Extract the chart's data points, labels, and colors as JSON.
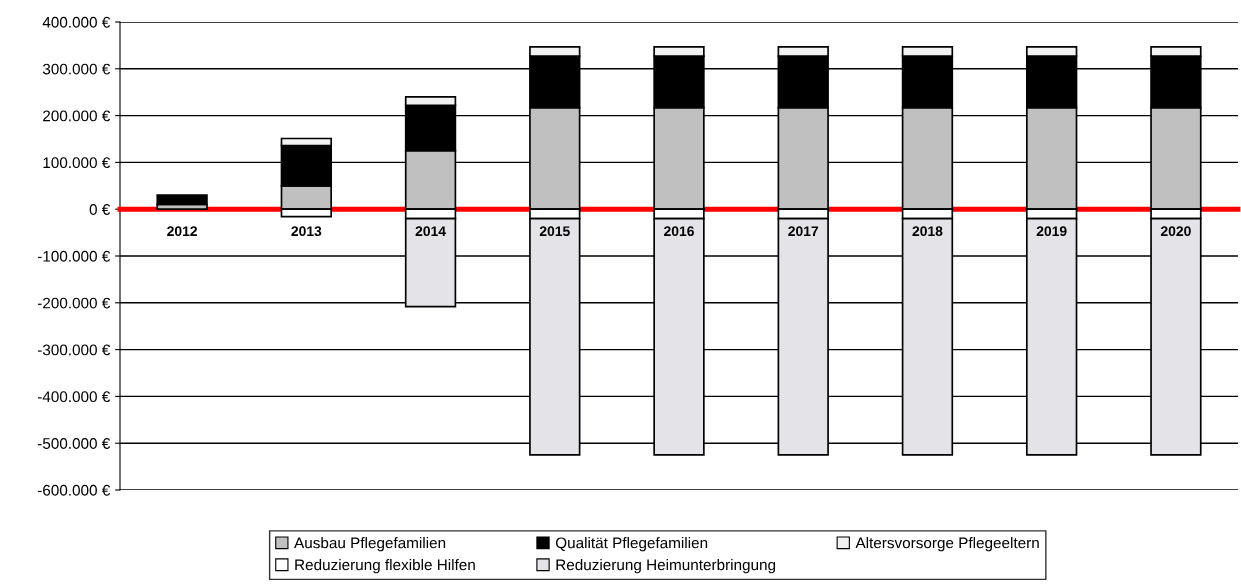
{
  "chart_data": {
    "type": "bar",
    "stacked": true,
    "categories": [
      "2012",
      "2013",
      "2014",
      "2015",
      "2016",
      "2017",
      "2018",
      "2019",
      "2020"
    ],
    "series": [
      {
        "name": "Ausbau Pflegefamilien",
        "color": "#c0c0c0",
        "values": [
          10000,
          50000,
          125000,
          217000,
          217000,
          217000,
          217000,
          217000,
          217000
        ]
      },
      {
        "name": "Qualität Pflegefamilien",
        "color": "#000000",
        "values": [
          20000,
          86000,
          97000,
          110000,
          110000,
          110000,
          110000,
          110000,
          110000
        ]
      },
      {
        "name": "Altersvorsorge Pflegeeltern",
        "color": "#f2f2f2",
        "values": [
          null,
          15000,
          18000,
          20000,
          20000,
          20000,
          20000,
          20000,
          20000
        ]
      },
      {
        "name": "Reduzierung flexible Hilfen",
        "color": "#ffffff",
        "values": [
          null,
          -16000,
          -20000,
          -20000,
          -20000,
          -20000,
          -20000,
          -20000,
          -20000
        ]
      },
      {
        "name": "Reduzierung Heimunterbringung",
        "color": "#e4e4e8",
        "values": [
          null,
          null,
          -188000,
          -505000,
          -505000,
          -505000,
          -505000,
          -505000,
          -505000
        ]
      }
    ],
    "ylim": [
      -600000,
      400000
    ],
    "yticks": [
      {
        "value": -600000,
        "label": "-600.000 €"
      },
      {
        "value": -500000,
        "label": "-500.000 €"
      },
      {
        "value": -400000,
        "label": "-400.000 €"
      },
      {
        "value": -300000,
        "label": "-300.000 €"
      },
      {
        "value": -200000,
        "label": "-200.000 €"
      },
      {
        "value": -100000,
        "label": "-100.000 €"
      },
      {
        "value": 0,
        "label": "0 €"
      },
      {
        "value": 100000,
        "label": "100.000 €"
      },
      {
        "value": 200000,
        "label": "200.000 €"
      },
      {
        "value": 300000,
        "label": "300.000 €"
      },
      {
        "value": 400000,
        "label": "400.000 €"
      }
    ],
    "grid": "y",
    "legend": "bottom"
  }
}
